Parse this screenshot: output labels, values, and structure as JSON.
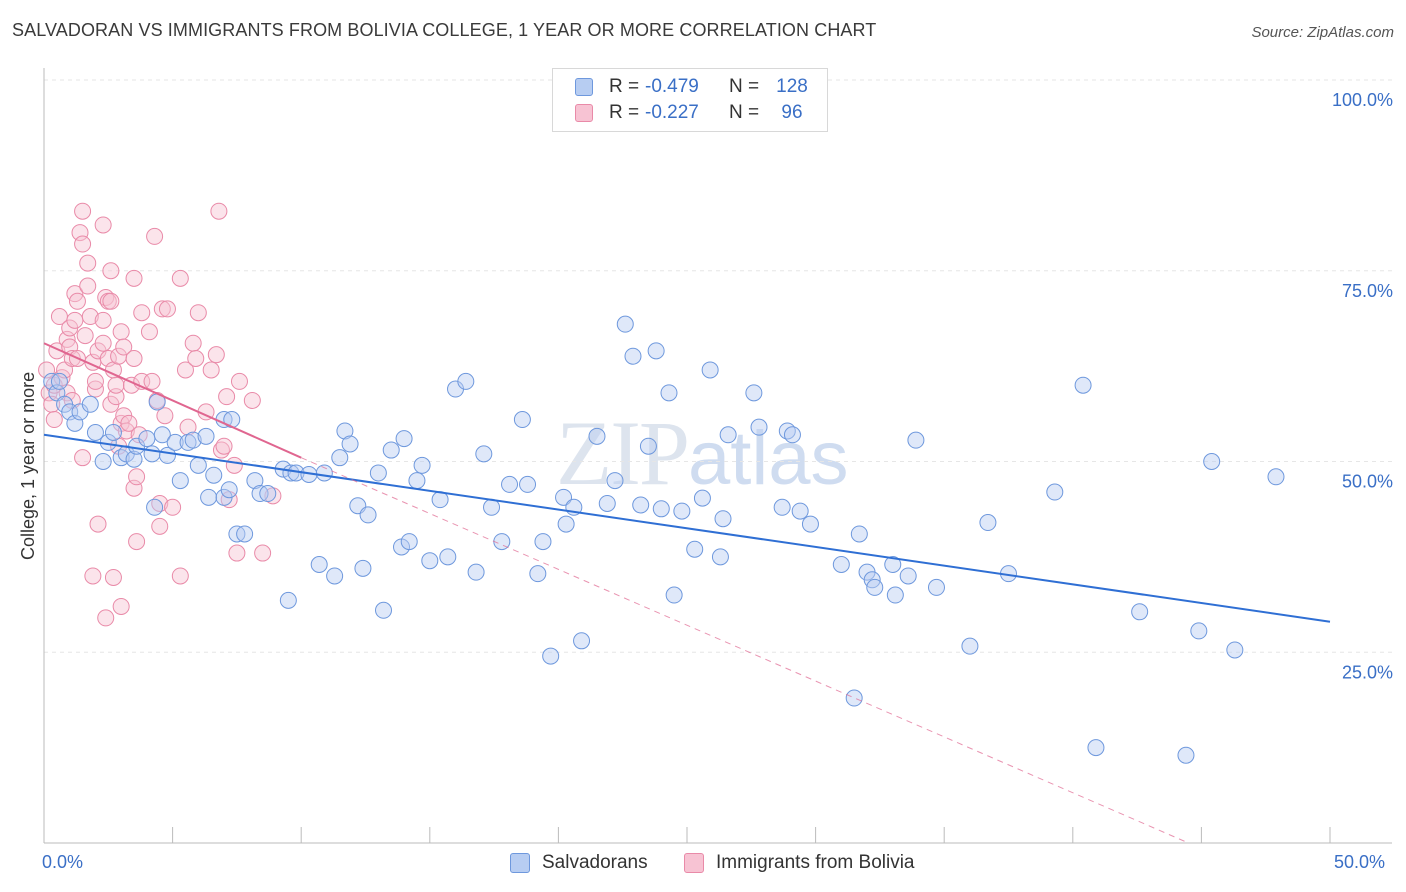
{
  "title": "SALVADORAN VS IMMIGRANTS FROM BOLIVIA COLLEGE, 1 YEAR OR MORE CORRELATION CHART",
  "source": "Source: ZipAtlas.com",
  "watermark": {
    "zip": "ZIP",
    "atlas": "atlas"
  },
  "legend": {
    "rows": [
      {
        "r_label": "R =",
        "r_value": "-0.479",
        "n_label": "N =",
        "n_value": "128",
        "color": "#6e98dd"
      },
      {
        "r_label": "R =",
        "r_value": "-0.227",
        "n_label": "N =",
        "n_value": "96",
        "color": "#e98aa8"
      }
    ]
  },
  "colors": {
    "blue_fill": "#b7cdf2",
    "blue_edge": "#6e98dd",
    "blue_line": "#2f6fd4",
    "pink_fill": "#f7c3d3",
    "pink_edge": "#e98aa8",
    "pink_line": "#e06690",
    "grid": "#e6e6e6",
    "axis_text": "#3a6fc6"
  },
  "chart_data": {
    "type": "scatter",
    "title": "SALVADORAN VS IMMIGRANTS FROM BOLIVIA COLLEGE, 1 YEAR OR MORE CORRELATION CHART",
    "xlabel": "",
    "ylabel": "College, 1 year or more",
    "xlim": [
      0,
      50
    ],
    "ylim": [
      0,
      100
    ],
    "x_tick_labels": [
      "0.0%",
      "50.0%"
    ],
    "y_tick_labels": [
      "100.0%",
      "75.0%",
      "50.0%",
      "25.0%"
    ],
    "y_ticks": [
      100,
      75,
      50,
      25
    ],
    "grid": true,
    "legend_position": "bottom",
    "series": [
      {
        "name": "Salvadorans",
        "r": -0.479,
        "n": 128,
        "trend": {
          "x": [
            0,
            50
          ],
          "y": [
            53.5,
            29.0
          ],
          "style": "solid"
        },
        "points": [
          [
            0.3,
            60.5
          ],
          [
            0.5,
            59
          ],
          [
            0.6,
            60.5
          ],
          [
            0.8,
            57.5
          ],
          [
            1,
            56.5
          ],
          [
            1.2,
            55
          ],
          [
            1.4,
            56.5
          ],
          [
            1.8,
            57.5
          ],
          [
            2,
            53.8
          ],
          [
            2.3,
            50
          ],
          [
            2.5,
            52.5
          ],
          [
            2.7,
            53.8
          ],
          [
            3,
            50.5
          ],
          [
            3.2,
            51
          ],
          [
            3.5,
            50.3
          ],
          [
            3.6,
            52
          ],
          [
            4,
            53
          ],
          [
            4.2,
            51
          ],
          [
            4.3,
            44
          ],
          [
            4.4,
            57.8
          ],
          [
            4.6,
            53.5
          ],
          [
            4.8,
            50.8
          ],
          [
            5.1,
            52.5
          ],
          [
            5.3,
            47.5
          ],
          [
            5.6,
            52.5
          ],
          [
            5.8,
            52.8
          ],
          [
            6,
            49.5
          ],
          [
            6.3,
            53.3
          ],
          [
            6.4,
            45.3
          ],
          [
            6.6,
            48.2
          ],
          [
            7,
            45.3
          ],
          [
            7.2,
            46.3
          ],
          [
            7,
            55.5
          ],
          [
            7.3,
            55.5
          ],
          [
            7.5,
            40.5
          ],
          [
            7.8,
            40.5
          ],
          [
            8.2,
            47.5
          ],
          [
            8.4,
            45.8
          ],
          [
            8.7,
            45.8
          ],
          [
            9.3,
            49
          ],
          [
            9.6,
            48.5
          ],
          [
            9.5,
            31.8
          ],
          [
            9.8,
            48.5
          ],
          [
            10.3,
            48.3
          ],
          [
            10.7,
            36.5
          ],
          [
            10.9,
            48.5
          ],
          [
            11.3,
            35
          ],
          [
            11.5,
            50.5
          ],
          [
            11.7,
            54
          ],
          [
            11.9,
            52.3
          ],
          [
            12.2,
            44.2
          ],
          [
            12.4,
            36
          ],
          [
            12.6,
            43
          ],
          [
            13,
            48.5
          ],
          [
            13.2,
            30.5
          ],
          [
            13.5,
            51.5
          ],
          [
            13.9,
            38.8
          ],
          [
            14,
            53
          ],
          [
            14.2,
            39.5
          ],
          [
            14.5,
            47.5
          ],
          [
            14.7,
            49.5
          ],
          [
            15,
            37
          ],
          [
            15.4,
            45
          ],
          [
            15.7,
            37.5
          ],
          [
            16,
            59.5
          ],
          [
            16.4,
            60.5
          ],
          [
            16.8,
            35.5
          ],
          [
            17.1,
            51
          ],
          [
            17.4,
            44
          ],
          [
            17.8,
            39.5
          ],
          [
            18.1,
            47
          ],
          [
            18.6,
            55.5
          ],
          [
            18.8,
            47
          ],
          [
            19.2,
            35.3
          ],
          [
            19.4,
            39.5
          ],
          [
            19.7,
            24.5
          ],
          [
            20.2,
            45.3
          ],
          [
            20.3,
            41.8
          ],
          [
            20.6,
            44
          ],
          [
            20.9,
            26.5
          ],
          [
            21.5,
            53.3
          ],
          [
            21.9,
            44.5
          ],
          [
            22.2,
            47.5
          ],
          [
            22.6,
            68
          ],
          [
            22.9,
            63.8
          ],
          [
            23.2,
            44.3
          ],
          [
            23.5,
            52
          ],
          [
            23.8,
            64.5
          ],
          [
            24,
            43.8
          ],
          [
            24.3,
            59
          ],
          [
            24.5,
            32.5
          ],
          [
            24.8,
            43.5
          ],
          [
            25.3,
            38.5
          ],
          [
            25.6,
            45.2
          ],
          [
            25.9,
            62
          ],
          [
            26.3,
            37.5
          ],
          [
            26.4,
            42.5
          ],
          [
            26.6,
            53.5
          ],
          [
            27.6,
            59
          ],
          [
            27.8,
            54.5
          ],
          [
            28.7,
            44
          ],
          [
            28.9,
            54
          ],
          [
            29.1,
            53.5
          ],
          [
            29.4,
            43.5
          ],
          [
            29.8,
            41.8
          ],
          [
            31,
            36.5
          ],
          [
            31.5,
            19
          ],
          [
            31.7,
            40.5
          ],
          [
            32,
            35.5
          ],
          [
            32.2,
            34.5
          ],
          [
            32.3,
            33.5
          ],
          [
            33,
            36.5
          ],
          [
            33.1,
            32.5
          ],
          [
            33.6,
            35
          ],
          [
            33.9,
            52.8
          ],
          [
            34.7,
            33.5
          ],
          [
            36,
            25.8
          ],
          [
            36.7,
            42
          ],
          [
            37.5,
            35.3
          ],
          [
            39.3,
            46
          ],
          [
            40.4,
            60
          ],
          [
            40.9,
            12.5
          ],
          [
            42.6,
            30.3
          ],
          [
            44.4,
            11.5
          ],
          [
            44.9,
            27.8
          ],
          [
            45.4,
            50
          ],
          [
            46.3,
            25.3
          ],
          [
            47.9,
            48
          ]
        ]
      },
      {
        "name": "Immigrants from Bolivia",
        "r": -0.227,
        "n": 96,
        "trend": {
          "x": [
            0,
            10
          ],
          "y": [
            65.5,
            50.5
          ],
          "style": "solid",
          "extension": {
            "x": [
              10,
              44.5
            ],
            "y": [
              50.5,
              0
            ],
            "style": "dashed"
          }
        },
        "points": [
          [
            0.1,
            62
          ],
          [
            0.2,
            59
          ],
          [
            0.3,
            57.5
          ],
          [
            0.4,
            60
          ],
          [
            0.4,
            55.5
          ],
          [
            0.5,
            64.5
          ],
          [
            0.6,
            69
          ],
          [
            0.7,
            61
          ],
          [
            0.8,
            62
          ],
          [
            0.9,
            59
          ],
          [
            0.9,
            66
          ],
          [
            1,
            67.5
          ],
          [
            1,
            65
          ],
          [
            1.1,
            63.5
          ],
          [
            1.1,
            58
          ],
          [
            1.2,
            68.5
          ],
          [
            1.2,
            72
          ],
          [
            1.3,
            63.5
          ],
          [
            1.3,
            71
          ],
          [
            1.4,
            80
          ],
          [
            1.5,
            82.8
          ],
          [
            1.5,
            78.5
          ],
          [
            1.5,
            50.5
          ],
          [
            1.6,
            66.5
          ],
          [
            1.7,
            73
          ],
          [
            1.7,
            76
          ],
          [
            1.8,
            69
          ],
          [
            1.9,
            63
          ],
          [
            1.9,
            35
          ],
          [
            2,
            59.5
          ],
          [
            2,
            60.5
          ],
          [
            2.1,
            64.5
          ],
          [
            2.1,
            41.8
          ],
          [
            2.3,
            65.5
          ],
          [
            2.3,
            68.5
          ],
          [
            2.3,
            81
          ],
          [
            2.4,
            71.5
          ],
          [
            2.4,
            29.5
          ],
          [
            2.5,
            63.5
          ],
          [
            2.5,
            71
          ],
          [
            2.6,
            71
          ],
          [
            2.6,
            57.5
          ],
          [
            2.6,
            75
          ],
          [
            2.7,
            62
          ],
          [
            2.7,
            34.8
          ],
          [
            2.8,
            58.5
          ],
          [
            2.8,
            60
          ],
          [
            2.9,
            63.8
          ],
          [
            2.9,
            52
          ],
          [
            3,
            31
          ],
          [
            3,
            55
          ],
          [
            3,
            67
          ],
          [
            3.1,
            65
          ],
          [
            3.1,
            56
          ],
          [
            3.2,
            54
          ],
          [
            3.3,
            55
          ],
          [
            3.4,
            60
          ],
          [
            3.5,
            63.5
          ],
          [
            3.5,
            74
          ],
          [
            3.5,
            46.5
          ],
          [
            3.6,
            48
          ],
          [
            3.6,
            39.5
          ],
          [
            3.7,
            53.5
          ],
          [
            3.8,
            69.5
          ],
          [
            3.8,
            60.5
          ],
          [
            4.1,
            67
          ],
          [
            4.2,
            60.5
          ],
          [
            4.3,
            79.5
          ],
          [
            4.4,
            58
          ],
          [
            4.5,
            44.5
          ],
          [
            4.5,
            41.5
          ],
          [
            4.6,
            70
          ],
          [
            4.7,
            56
          ],
          [
            4.8,
            70
          ],
          [
            5,
            44
          ],
          [
            5.3,
            74
          ],
          [
            5.3,
            35
          ],
          [
            5.5,
            62
          ],
          [
            5.6,
            54.5
          ],
          [
            5.8,
            65.5
          ],
          [
            5.9,
            63.5
          ],
          [
            6,
            69.5
          ],
          [
            6.3,
            56.5
          ],
          [
            6.5,
            62
          ],
          [
            6.7,
            64
          ],
          [
            6.8,
            82.8
          ],
          [
            6.9,
            51.5
          ],
          [
            7,
            52
          ],
          [
            7.1,
            58.5
          ],
          [
            7.2,
            45
          ],
          [
            7.4,
            49.5
          ],
          [
            7.5,
            38
          ],
          [
            7.6,
            60.5
          ],
          [
            8.1,
            58
          ],
          [
            8.5,
            38
          ],
          [
            8.9,
            45.5
          ]
        ]
      }
    ]
  },
  "bottom_legend": [
    {
      "label": "Salvadorans",
      "color": "#b7cdf2"
    },
    {
      "label": "Immigrants from Bolivia",
      "color": "#f7c3d3"
    }
  ]
}
